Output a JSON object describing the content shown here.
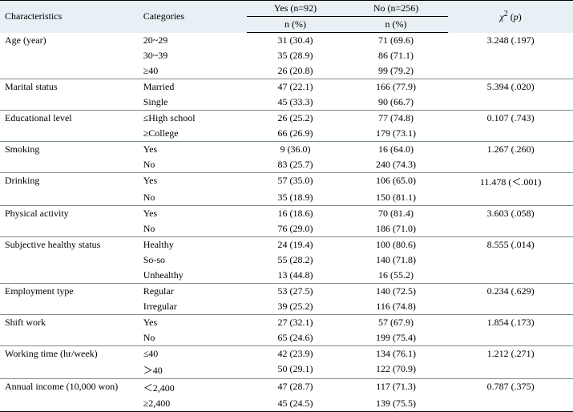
{
  "header": {
    "characteristics": "Characteristics",
    "categories": "Categories",
    "yes_label": "Yes (n=92)",
    "no_label": "No (n=256)",
    "n_pct": "n (%)",
    "chi_label": "χ",
    "chi_sup": "2",
    "chi_paren_open": " (",
    "chi_p": "p",
    "chi_paren_close": ")"
  },
  "groups": [
    {
      "char": "Age (year)",
      "chi": "3.248 (.197)",
      "rows": [
        {
          "cat": "20~29",
          "yes": "31 (30.4)",
          "no": "71 (69.6)"
        },
        {
          "cat": "30~39",
          "yes": "35 (28.9)",
          "no": "86 (71.1)"
        },
        {
          "cat": "≥40",
          "yes": "26 (20.8)",
          "no": "99 (79.2)"
        }
      ]
    },
    {
      "char": "Marital status",
      "chi": "5.394 (.020)",
      "rows": [
        {
          "cat": "Married",
          "yes": "47 (22.1)",
          "no": "166 (77.9)"
        },
        {
          "cat": "Single",
          "yes": "45 (33.3)",
          "no": "90 (66.7)"
        }
      ]
    },
    {
      "char": "Educational level",
      "chi": "0.107 (.743)",
      "rows": [
        {
          "cat": "≤High school",
          "yes": "26 (25.2)",
          "no": "77 (74.8)"
        },
        {
          "cat": "≥College",
          "yes": "66 (26.9)",
          "no": "179 (73.1)"
        }
      ]
    },
    {
      "char": "Smoking",
      "chi": "1.267 (.260)",
      "rows": [
        {
          "cat": "Yes",
          "yes": "9 (36.0)",
          "no": "16 (64.0)"
        },
        {
          "cat": "No",
          "yes": "83 (25.7)",
          "no": "240 (74.3)"
        }
      ]
    },
    {
      "char": "Drinking",
      "chi": "11.478 (＜.001)",
      "rows": [
        {
          "cat": "Yes",
          "yes": "57 (35.0)",
          "no": "106 (65.0)"
        },
        {
          "cat": "No",
          "yes": "35 (18.9)",
          "no": "150 (81.1)"
        }
      ]
    },
    {
      "char": "Physical activity",
      "chi": "3.603 (.058)",
      "rows": [
        {
          "cat": "Yes",
          "yes": "16 (18.6)",
          "no": "70 (81.4)"
        },
        {
          "cat": "No",
          "yes": "76 (29.0)",
          "no": "186 (71.0)"
        }
      ]
    },
    {
      "char": "Subjective healthy status",
      "chi": "8.555 (.014)",
      "rows": [
        {
          "cat": "Healthy",
          "yes": "24 (19.4)",
          "no": "100 (80.6)"
        },
        {
          "cat": "So-so",
          "yes": "55 (28.2)",
          "no": "140 (71.8)"
        },
        {
          "cat": "Unhealthy",
          "yes": "13 (44.8)",
          "no": "16 (55.2)"
        }
      ]
    },
    {
      "char": "Employment type",
      "chi": "0.234 (.629)",
      "rows": [
        {
          "cat": "Regular",
          "yes": "53 (27.5)",
          "no": "140 (72.5)"
        },
        {
          "cat": "Irregular",
          "yes": "39 (25.2)",
          "no": "116 (74.8)"
        }
      ]
    },
    {
      "char": "Shift work",
      "chi": "1.854 (.173)",
      "rows": [
        {
          "cat": "Yes",
          "yes": "27 (32.1)",
          "no": "57 (67.9)"
        },
        {
          "cat": "No",
          "yes": "65 (24.6)",
          "no": "199 (75.4)"
        }
      ]
    },
    {
      "char": "Working time (hr/week)",
      "chi": "1.212 (.271)",
      "rows": [
        {
          "cat": "≤40",
          "yes": "42 (23.9)",
          "no": "134 (76.1)"
        },
        {
          "cat": "＞40",
          "yes": "50 (29.1)",
          "no": "122 (70.9)"
        }
      ]
    },
    {
      "char": "Annual income (10,000 won)",
      "chi": "0.787 (.375)",
      "rows": [
        {
          "cat": "＜2,400",
          "yes": "47 (28.7)",
          "no": "117 (71.3)"
        },
        {
          "cat": "≥2,400",
          "yes": "45 (24.5)",
          "no": "139 (75.5)"
        }
      ]
    }
  ]
}
